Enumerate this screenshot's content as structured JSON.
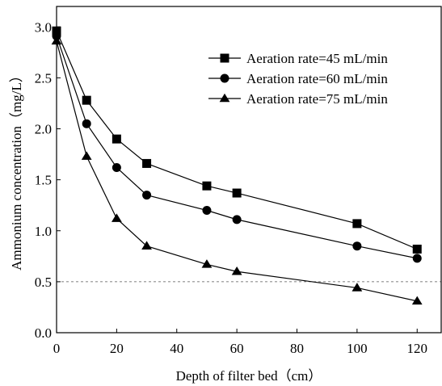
{
  "chart_data": {
    "type": "line",
    "xlabel": "Depth of filter bed（cm）",
    "ylabel": "Ammonium concentration（mg/L）",
    "xlim": [
      0,
      128
    ],
    "ylim": [
      0,
      3.2
    ],
    "xticks": [
      0,
      20,
      40,
      60,
      80,
      100,
      120
    ],
    "yticks": [
      0.0,
      0.5,
      1.0,
      1.5,
      2.0,
      2.5,
      3.0
    ],
    "xtick_labels": [
      "0",
      "20",
      "40",
      "60",
      "80",
      "100",
      "120"
    ],
    "ytick_labels": [
      "0.0",
      "0.5",
      "1.0",
      "1.5",
      "2.0",
      "2.5",
      "3.0"
    ],
    "reference_line": {
      "y": 0.5,
      "style": "dashed"
    },
    "grid": false,
    "legend_position": "top-right",
    "series": [
      {
        "name": "Aeration rate=45 mL/min",
        "marker": "square",
        "points": [
          {
            "x": 0,
            "y": 2.96
          },
          {
            "x": 10,
            "y": 2.28
          },
          {
            "x": 20,
            "y": 1.9
          },
          {
            "x": 30,
            "y": 1.66
          },
          {
            "x": 50,
            "y": 1.44
          },
          {
            "x": 60,
            "y": 1.37
          },
          {
            "x": 100,
            "y": 1.07
          },
          {
            "x": 120,
            "y": 0.82
          }
        ]
      },
      {
        "name": "Aeration rate=60 mL/min",
        "marker": "circle",
        "points": [
          {
            "x": 0,
            "y": 2.91
          },
          {
            "x": 10,
            "y": 2.05
          },
          {
            "x": 20,
            "y": 1.62
          },
          {
            "x": 30,
            "y": 1.35
          },
          {
            "x": 50,
            "y": 1.2
          },
          {
            "x": 60,
            "y": 1.11
          },
          {
            "x": 100,
            "y": 0.85
          },
          {
            "x": 120,
            "y": 0.73
          }
        ]
      },
      {
        "name": "Aeration rate=75 mL/min",
        "marker": "triangle",
        "points": [
          {
            "x": 0,
            "y": 2.86
          },
          {
            "x": 10,
            "y": 1.73
          },
          {
            "x": 20,
            "y": 1.12
          },
          {
            "x": 30,
            "y": 0.85
          },
          {
            "x": 50,
            "y": 0.67
          },
          {
            "x": 60,
            "y": 0.6
          },
          {
            "x": 100,
            "y": 0.44
          },
          {
            "x": 120,
            "y": 0.31
          }
        ]
      }
    ]
  }
}
